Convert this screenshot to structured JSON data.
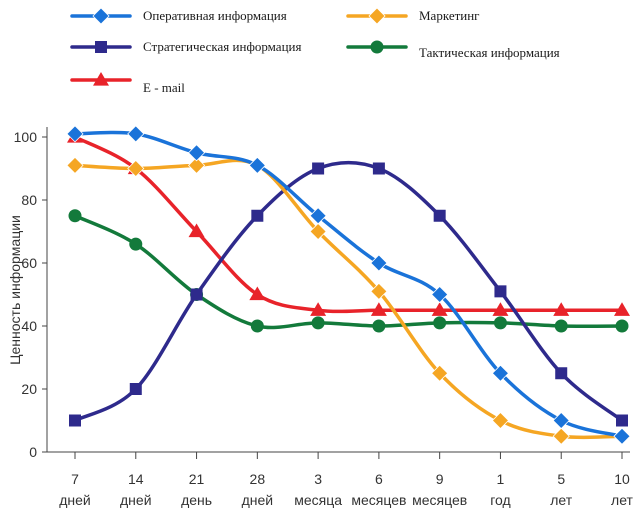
{
  "chart_data": {
    "type": "line",
    "ylabel": "Ценность информации",
    "xlabel": "",
    "ylim": [
      0,
      100
    ],
    "yticks": [
      0,
      20,
      40,
      60,
      80,
      100
    ],
    "grid": false,
    "legend_position": "top",
    "categories": [
      {
        "top": "7",
        "bottom": "дней"
      },
      {
        "top": "14",
        "bottom": "дней"
      },
      {
        "top": "21",
        "bottom": "день"
      },
      {
        "top": "28",
        "bottom": "дней"
      },
      {
        "top": "3",
        "bottom": "месяца"
      },
      {
        "top": "6",
        "bottom": "месяцев"
      },
      {
        "top": "9",
        "bottom": "месяцев"
      },
      {
        "top": "1",
        "bottom": "год"
      },
      {
        "top": "5",
        "bottom": "лет"
      },
      {
        "top": "10",
        "bottom": "лет"
      }
    ],
    "series": [
      {
        "name": "Оперативная информация",
        "color": "#1a73d9",
        "marker": "diamond",
        "values": [
          101,
          101,
          95,
          91,
          75,
          60,
          50,
          25,
          10,
          5
        ]
      },
      {
        "name": "Стратегическая информация",
        "color": "#2e2a8c",
        "marker": "square",
        "values": [
          10,
          20,
          50,
          75,
          90,
          90,
          75,
          51,
          25,
          10
        ]
      },
      {
        "name": "E - mail",
        "color": "#e8232a",
        "marker": "triangle",
        "values": [
          100,
          90,
          70,
          50,
          45,
          45,
          45,
          45,
          45,
          45
        ]
      },
      {
        "name": "Маркетинг",
        "color": "#f5a623",
        "marker": "diamond",
        "values": [
          91,
          90,
          91,
          91,
          70,
          51,
          25,
          10,
          5,
          5
        ]
      },
      {
        "name": "Тактическая информация",
        "color": "#137a3b",
        "marker": "circle",
        "values": [
          75,
          66,
          50,
          40,
          41,
          40,
          41,
          41,
          40,
          40
        ]
      }
    ]
  }
}
